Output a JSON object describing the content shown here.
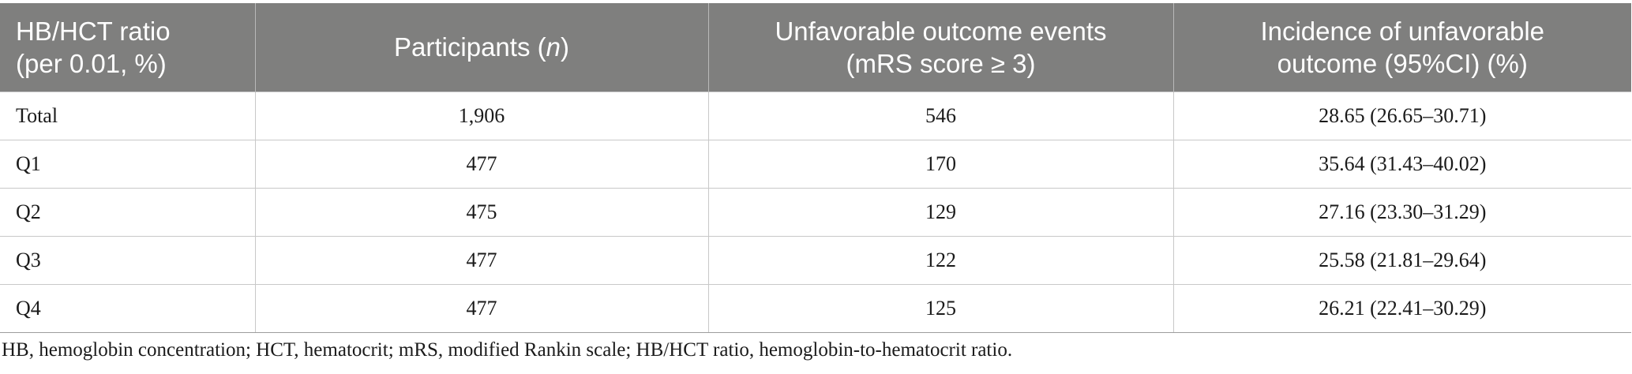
{
  "table": {
    "header": {
      "col1": [
        "HB/HCT ratio",
        "(per 0.01, %)"
      ],
      "col2_prefix": "Participants (",
      "col2_italic": "n",
      "col2_suffix": ")",
      "col3": [
        "Unfavorable outcome events",
        "(mRS score ≥ 3)"
      ],
      "col4": [
        "Incidence of unfavorable",
        "outcome (95%CI) (%)"
      ]
    },
    "rows": [
      {
        "group": "Total",
        "participants": "1,906",
        "events": "546",
        "incidence": "28.65 (26.65–30.71)"
      },
      {
        "group": "Q1",
        "participants": "477",
        "events": "170",
        "incidence": "35.64 (31.43–40.02)"
      },
      {
        "group": "Q2",
        "participants": "475",
        "events": "129",
        "incidence": "27.16 (23.30–31.29)"
      },
      {
        "group": "Q3",
        "participants": "477",
        "events": "122",
        "incidence": "25.58 (21.81–29.64)"
      },
      {
        "group": "Q4",
        "participants": "477",
        "events": "125",
        "incidence": "26.21 (22.41–30.29)"
      }
    ],
    "colors": {
      "header_background": "#7f7f7e",
      "header_text": "#ffffff",
      "row_border": "#c8c8c8"
    }
  },
  "footnote": "HB, hemoglobin concentration; HCT, hematocrit; mRS, modified Rankin scale; HB/HCT ratio, hemoglobin-to-hematocrit ratio."
}
